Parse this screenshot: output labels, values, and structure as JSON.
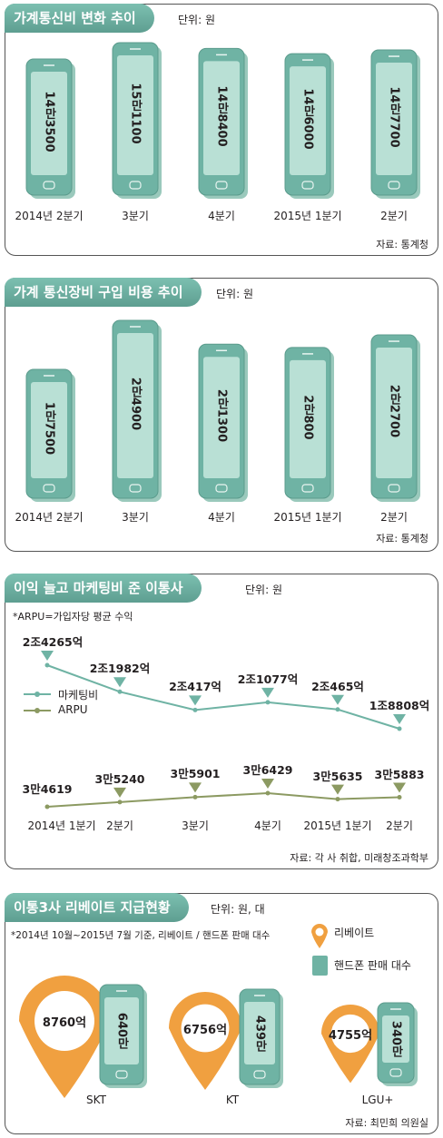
{
  "colors": {
    "teal": "#6fb3a4",
    "teal_dark": "#5b9b8c",
    "screen": "#b9e0d5",
    "olive": "#8c9a62",
    "orange": "#f0a040"
  },
  "panel1": {
    "title": "가계통신비 변화 추이",
    "unit": "단위: 원",
    "source": "자료: 통계청",
    "chart_data": {
      "type": "bar",
      "title": "가계통신비 변화 추이",
      "categories": [
        "2014년 2분기",
        "3분기",
        "4분기",
        "2015년 1분기",
        "2분기"
      ],
      "values": [
        143500,
        151100,
        148400,
        146000,
        147700
      ],
      "value_labels": [
        "14만3500",
        "15만1100",
        "14만8400",
        "14만6000",
        "14만7700"
      ]
    }
  },
  "panel2": {
    "title": "가계 통신장비 구입 비용 추이",
    "unit": "단위: 원",
    "source": "자료: 통계청",
    "chart_data": {
      "type": "bar",
      "title": "가계 통신장비 구입 비용 추이",
      "categories": [
        "2014년 2분기",
        "3분기",
        "4분기",
        "2015년 1분기",
        "2분기"
      ],
      "values": [
        17500,
        24900,
        21300,
        20800,
        22700
      ],
      "value_labels": [
        "1만7500",
        "2만4900",
        "2만1300",
        "2만800",
        "2만2700"
      ]
    }
  },
  "panel3": {
    "title": "이익 늘고 마케팅비 준 이통사",
    "unit": "단위: 원",
    "note": "*ARPU=가입자당 평균 수익",
    "source": "자료: 각 사 취합, 미래창조과학부",
    "legend": [
      "마케팅비",
      "ARPU"
    ],
    "chart_data": {
      "type": "line",
      "title": "이익 늘고 마케팅비 준 이통사",
      "categories": [
        "2014년 1분기",
        "2분기",
        "3분기",
        "4분기",
        "2015년 1분기",
        "2분기"
      ],
      "series": [
        {
          "name": "마케팅비",
          "values": [
            2426500000000,
            2198200000000,
            2041700000000,
            2107700000000,
            2046500000000,
            1880800000000
          ],
          "labels": [
            "2조4265억",
            "2조1982억",
            "2조417억",
            "2조1077억",
            "2조465억",
            "1조8808억"
          ]
        },
        {
          "name": "ARPU",
          "values": [
            34619,
            35240,
            35901,
            36429,
            35635,
            35883
          ],
          "labels": [
            "3만4619",
            "3만5240",
            "3만5901",
            "3만6429",
            "3만5635",
            "3만5883"
          ]
        }
      ]
    }
  },
  "panel4": {
    "title": "이통3사 리베이트 지급현황",
    "unit": "단위: 원, 대",
    "note": "*2014년 10월~2015년 7월 기준, 리베이트 / 핸드폰 판매 대수",
    "legend": [
      "리베이트",
      "핸드폰 판매 대수"
    ],
    "source": "자료: 최민희 의원실",
    "chart_data": {
      "type": "bar",
      "title": "이통3사 리베이트 지급현황",
      "categories": [
        "SKT",
        "KT",
        "LGU+"
      ],
      "series": [
        {
          "name": "리베이트",
          "values": [
            876000000000,
            675600000000,
            475500000000
          ],
          "labels": [
            "8760억",
            "6756억",
            "4755억"
          ]
        },
        {
          "name": "핸드폰 판매 대수",
          "values": [
            6400000,
            4390000,
            3400000
          ],
          "labels": [
            "640만",
            "439만",
            "340만"
          ]
        }
      ]
    }
  }
}
